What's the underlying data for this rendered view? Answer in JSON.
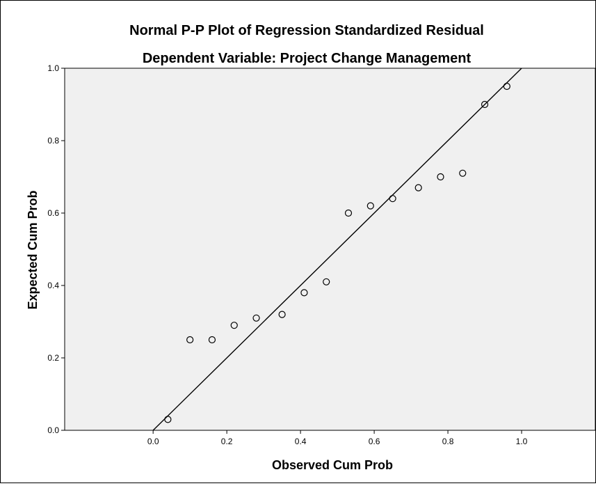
{
  "chart_data": {
    "type": "scatter",
    "title": "Normal P-P Plot of Regression Standardized Residual",
    "subtitle": "Dependent Variable: Project Change Management",
    "xlabel": "Observed Cum Prob",
    "ylabel": "Expected Cum Prob",
    "xlim": [
      -0.24,
      1.2
    ],
    "ylim": [
      0.0,
      1.0
    ],
    "x_ticks": [
      "0.0",
      "0.2",
      "0.4",
      "0.6",
      "0.8",
      "1.0"
    ],
    "y_ticks": [
      "0.0",
      "0.2",
      "0.4",
      "0.6",
      "0.8",
      "1.0"
    ],
    "grid": false,
    "plot_background": "#f0f0f0",
    "marker": "open-circle",
    "reference_line": {
      "from": [
        0,
        0
      ],
      "to": [
        1,
        1
      ]
    },
    "points": [
      {
        "x": 0.04,
        "y": 0.03
      },
      {
        "x": 0.1,
        "y": 0.25
      },
      {
        "x": 0.16,
        "y": 0.25
      },
      {
        "x": 0.22,
        "y": 0.29
      },
      {
        "x": 0.28,
        "y": 0.31
      },
      {
        "x": 0.35,
        "y": 0.32
      },
      {
        "x": 0.41,
        "y": 0.38
      },
      {
        "x": 0.47,
        "y": 0.41
      },
      {
        "x": 0.53,
        "y": 0.6
      },
      {
        "x": 0.59,
        "y": 0.62
      },
      {
        "x": 0.65,
        "y": 0.64
      },
      {
        "x": 0.72,
        "y": 0.67
      },
      {
        "x": 0.78,
        "y": 0.7
      },
      {
        "x": 0.84,
        "y": 0.71
      },
      {
        "x": 0.9,
        "y": 0.9
      },
      {
        "x": 0.96,
        "y": 0.95
      }
    ]
  }
}
